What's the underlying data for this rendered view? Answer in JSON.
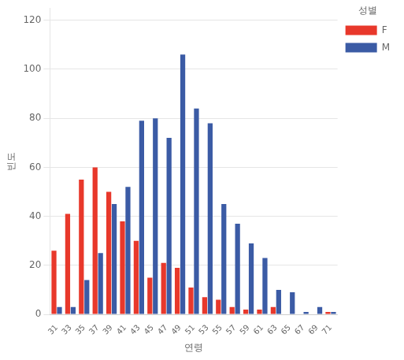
{
  "chart_data": {
    "type": "bar",
    "categories": [
      31,
      33,
      35,
      37,
      39,
      41,
      43,
      45,
      47,
      49,
      51,
      53,
      55,
      57,
      59,
      61,
      63,
      65,
      67,
      69,
      71
    ],
    "series": [
      {
        "name": "F",
        "color": "#E8382B",
        "values": [
          26,
          41,
          55,
          60,
          50,
          38,
          30,
          15,
          21,
          19,
          11,
          7,
          6,
          3,
          2,
          2,
          3,
          0,
          0,
          0,
          1
        ]
      },
      {
        "name": "M",
        "color": "#3B5BA5",
        "values": [
          3,
          3,
          14,
          25,
          45,
          52,
          79,
          80,
          72,
          106,
          84,
          78,
          45,
          37,
          29,
          23,
          10,
          9,
          1,
          3,
          1
        ]
      }
    ],
    "xlabel": "연령",
    "ylabel": "빈도",
    "legend_title": "성별",
    "ylim": [
      0,
      125
    ],
    "yticks": [
      0,
      20,
      40,
      60,
      80,
      100,
      120
    ],
    "grid": true,
    "legend": "right"
  }
}
